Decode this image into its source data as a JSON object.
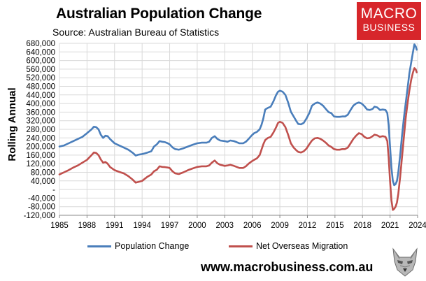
{
  "header": {
    "title": "Australian Population Change",
    "subtitle": "Source: Australian Bureau of Statistics"
  },
  "logo": {
    "line1": "MACRO",
    "line2": "BUSINESS",
    "background": "#d7262b"
  },
  "footer": {
    "website": "www.macrobusiness.com.au"
  },
  "chart_data": {
    "type": "line",
    "title": "Australian Population Change",
    "ylabel": "Rolling Annual",
    "xlabel": "",
    "ylim": [
      -120000,
      680000
    ],
    "xlim": [
      1985,
      2024
    ],
    "yticks": [
      -120000,
      -80000,
      -40000,
      0,
      40000,
      80000,
      120000,
      160000,
      200000,
      240000,
      280000,
      320000,
      360000,
      400000,
      440000,
      480000,
      520000,
      560000,
      600000,
      640000,
      680000
    ],
    "ytick_labels": [
      "-120,000",
      "-80,000",
      "-40,000",
      "-",
      "40,000",
      "80,000",
      "120,000",
      "160,000",
      "200,000",
      "240,000",
      "280,000",
      "320,000",
      "360,000",
      "400,000",
      "440,000",
      "480,000",
      "520,000",
      "560,000",
      "600,000",
      "640,000",
      "680,000"
    ],
    "xticks": [
      1985,
      1988,
      1991,
      1994,
      1997,
      2000,
      2003,
      2006,
      2009,
      2012,
      2015,
      2018,
      2021,
      2024
    ],
    "xtick_labels": [
      "1985",
      "1988",
      "1991",
      "1994",
      "1997",
      "2000",
      "2003",
      "2006",
      "2009",
      "2012",
      "2015",
      "2018",
      "2021",
      "2024"
    ],
    "grid": true,
    "legend_position": "bottom",
    "series": [
      {
        "name": "Population Change",
        "color": "#4a7ebb",
        "points": [
          [
            1985.0,
            200000
          ],
          [
            1985.5,
            205000
          ],
          [
            1986.0,
            215000
          ],
          [
            1986.5,
            225000
          ],
          [
            1987.0,
            235000
          ],
          [
            1987.5,
            245000
          ],
          [
            1988.0,
            262000
          ],
          [
            1988.5,
            280000
          ],
          [
            1988.75,
            292000
          ],
          [
            1989.0,
            290000
          ],
          [
            1989.25,
            280000
          ],
          [
            1989.5,
            255000
          ],
          [
            1989.75,
            240000
          ],
          [
            1990.0,
            250000
          ],
          [
            1990.25,
            248000
          ],
          [
            1990.5,
            235000
          ],
          [
            1991.0,
            215000
          ],
          [
            1991.5,
            205000
          ],
          [
            1992.0,
            195000
          ],
          [
            1992.5,
            185000
          ],
          [
            1993.0,
            170000
          ],
          [
            1993.3,
            158000
          ],
          [
            1993.6,
            162000
          ],
          [
            1994.0,
            165000
          ],
          [
            1994.3,
            168000
          ],
          [
            1994.6,
            172000
          ],
          [
            1995.0,
            178000
          ],
          [
            1995.3,
            200000
          ],
          [
            1995.6,
            210000
          ],
          [
            1995.9,
            225000
          ],
          [
            1996.2,
            222000
          ],
          [
            1996.5,
            220000
          ],
          [
            1996.8,
            215000
          ],
          [
            1997.0,
            210000
          ],
          [
            1997.3,
            196000
          ],
          [
            1997.6,
            188000
          ],
          [
            1998.0,
            185000
          ],
          [
            1998.5,
            192000
          ],
          [
            1999.0,
            200000
          ],
          [
            1999.5,
            208000
          ],
          [
            2000.0,
            215000
          ],
          [
            2000.5,
            218000
          ],
          [
            2001.0,
            218000
          ],
          [
            2001.3,
            222000
          ],
          [
            2001.6,
            240000
          ],
          [
            2001.9,
            248000
          ],
          [
            2002.2,
            235000
          ],
          [
            2002.5,
            228000
          ],
          [
            2003.0,
            225000
          ],
          [
            2003.3,
            222000
          ],
          [
            2003.6,
            228000
          ],
          [
            2004.0,
            225000
          ],
          [
            2004.3,
            220000
          ],
          [
            2004.6,
            215000
          ],
          [
            2005.0,
            215000
          ],
          [
            2005.3,
            222000
          ],
          [
            2005.6,
            235000
          ],
          [
            2005.9,
            250000
          ],
          [
            2006.2,
            262000
          ],
          [
            2006.5,
            268000
          ],
          [
            2006.8,
            280000
          ],
          [
            2007.0,
            300000
          ],
          [
            2007.2,
            330000
          ],
          [
            2007.4,
            372000
          ],
          [
            2007.7,
            380000
          ],
          [
            2008.0,
            385000
          ],
          [
            2008.3,
            410000
          ],
          [
            2008.6,
            440000
          ],
          [
            2008.8,
            455000
          ],
          [
            2009.0,
            460000
          ],
          [
            2009.3,
            455000
          ],
          [
            2009.6,
            440000
          ],
          [
            2009.9,
            405000
          ],
          [
            2010.2,
            362000
          ],
          [
            2010.5,
            340000
          ],
          [
            2010.8,
            318000
          ],
          [
            2011.0,
            305000
          ],
          [
            2011.3,
            303000
          ],
          [
            2011.6,
            310000
          ],
          [
            2011.9,
            330000
          ],
          [
            2012.2,
            355000
          ],
          [
            2012.5,
            390000
          ],
          [
            2012.8,
            400000
          ],
          [
            2013.1,
            405000
          ],
          [
            2013.4,
            400000
          ],
          [
            2013.7,
            390000
          ],
          [
            2014.0,
            375000
          ],
          [
            2014.3,
            360000
          ],
          [
            2014.6,
            355000
          ],
          [
            2014.9,
            340000
          ],
          [
            2015.2,
            338000
          ],
          [
            2015.5,
            338000
          ],
          [
            2015.8,
            340000
          ],
          [
            2016.1,
            340000
          ],
          [
            2016.4,
            348000
          ],
          [
            2016.7,
            370000
          ],
          [
            2017.0,
            390000
          ],
          [
            2017.3,
            400000
          ],
          [
            2017.6,
            405000
          ],
          [
            2017.9,
            400000
          ],
          [
            2018.2,
            388000
          ],
          [
            2018.5,
            372000
          ],
          [
            2018.8,
            370000
          ],
          [
            2019.1,
            375000
          ],
          [
            2019.3,
            385000
          ],
          [
            2019.6,
            382000
          ],
          [
            2019.9,
            370000
          ],
          [
            2020.2,
            372000
          ],
          [
            2020.5,
            370000
          ],
          [
            2020.7,
            355000
          ],
          [
            2020.85,
            300000
          ],
          [
            2021.0,
            200000
          ],
          [
            2021.15,
            100000
          ],
          [
            2021.3,
            40000
          ],
          [
            2021.45,
            20000
          ],
          [
            2021.6,
            25000
          ],
          [
            2021.75,
            40000
          ],
          [
            2021.9,
            80000
          ],
          [
            2022.1,
            160000
          ],
          [
            2022.3,
            250000
          ],
          [
            2022.5,
            330000
          ],
          [
            2022.7,
            400000
          ],
          [
            2022.9,
            470000
          ],
          [
            2023.1,
            540000
          ],
          [
            2023.3,
            590000
          ],
          [
            2023.5,
            640000
          ],
          [
            2023.65,
            675000
          ],
          [
            2023.8,
            665000
          ],
          [
            2023.9,
            650000
          ]
        ]
      },
      {
        "name": "Net Overseas Migration",
        "color": "#c0504d",
        "points": [
          [
            1985.0,
            70000
          ],
          [
            1985.5,
            80000
          ],
          [
            1986.0,
            90000
          ],
          [
            1986.5,
            102000
          ],
          [
            1987.0,
            112000
          ],
          [
            1987.5,
            125000
          ],
          [
            1988.0,
            138000
          ],
          [
            1988.5,
            160000
          ],
          [
            1988.75,
            172000
          ],
          [
            1989.0,
            170000
          ],
          [
            1989.25,
            160000
          ],
          [
            1989.5,
            140000
          ],
          [
            1989.75,
            125000
          ],
          [
            1990.0,
            128000
          ],
          [
            1990.25,
            120000
          ],
          [
            1990.5,
            105000
          ],
          [
            1991.0,
            90000
          ],
          [
            1991.5,
            82000
          ],
          [
            1992.0,
            75000
          ],
          [
            1992.5,
            62000
          ],
          [
            1993.0,
            45000
          ],
          [
            1993.3,
            32000
          ],
          [
            1993.6,
            35000
          ],
          [
            1994.0,
            40000
          ],
          [
            1994.3,
            50000
          ],
          [
            1994.6,
            60000
          ],
          [
            1995.0,
            70000
          ],
          [
            1995.3,
            85000
          ],
          [
            1995.6,
            92000
          ],
          [
            1995.9,
            108000
          ],
          [
            1996.2,
            105000
          ],
          [
            1996.5,
            104000
          ],
          [
            1996.8,
            102000
          ],
          [
            1997.0,
            100000
          ],
          [
            1997.3,
            85000
          ],
          [
            1997.6,
            75000
          ],
          [
            1998.0,
            72000
          ],
          [
            1998.5,
            80000
          ],
          [
            1999.0,
            90000
          ],
          [
            1999.5,
            98000
          ],
          [
            2000.0,
            105000
          ],
          [
            2000.5,
            108000
          ],
          [
            2001.0,
            108000
          ],
          [
            2001.3,
            112000
          ],
          [
            2001.6,
            125000
          ],
          [
            2001.9,
            135000
          ],
          [
            2002.2,
            122000
          ],
          [
            2002.5,
            115000
          ],
          [
            2003.0,
            110000
          ],
          [
            2003.3,
            112000
          ],
          [
            2003.6,
            115000
          ],
          [
            2004.0,
            110000
          ],
          [
            2004.3,
            105000
          ],
          [
            2004.6,
            100000
          ],
          [
            2005.0,
            100000
          ],
          [
            2005.3,
            108000
          ],
          [
            2005.6,
            120000
          ],
          [
            2005.9,
            130000
          ],
          [
            2006.2,
            138000
          ],
          [
            2006.5,
            145000
          ],
          [
            2006.8,
            160000
          ],
          [
            2007.0,
            185000
          ],
          [
            2007.2,
            210000
          ],
          [
            2007.4,
            230000
          ],
          [
            2007.7,
            240000
          ],
          [
            2008.0,
            245000
          ],
          [
            2008.3,
            265000
          ],
          [
            2008.6,
            290000
          ],
          [
            2008.8,
            310000
          ],
          [
            2009.0,
            315000
          ],
          [
            2009.3,
            310000
          ],
          [
            2009.6,
            290000
          ],
          [
            2009.9,
            255000
          ],
          [
            2010.2,
            215000
          ],
          [
            2010.5,
            195000
          ],
          [
            2010.8,
            182000
          ],
          [
            2011.0,
            175000
          ],
          [
            2011.3,
            172000
          ],
          [
            2011.6,
            178000
          ],
          [
            2011.9,
            190000
          ],
          [
            2012.2,
            210000
          ],
          [
            2012.5,
            228000
          ],
          [
            2012.8,
            238000
          ],
          [
            2013.1,
            240000
          ],
          [
            2013.4,
            236000
          ],
          [
            2013.7,
            228000
          ],
          [
            2014.0,
            218000
          ],
          [
            2014.3,
            205000
          ],
          [
            2014.6,
            198000
          ],
          [
            2014.9,
            188000
          ],
          [
            2015.2,
            185000
          ],
          [
            2015.5,
            185000
          ],
          [
            2015.8,
            188000
          ],
          [
            2016.1,
            188000
          ],
          [
            2016.4,
            195000
          ],
          [
            2016.7,
            215000
          ],
          [
            2017.0,
            235000
          ],
          [
            2017.3,
            250000
          ],
          [
            2017.6,
            262000
          ],
          [
            2017.9,
            258000
          ],
          [
            2018.2,
            245000
          ],
          [
            2018.5,
            238000
          ],
          [
            2018.8,
            240000
          ],
          [
            2019.1,
            248000
          ],
          [
            2019.3,
            255000
          ],
          [
            2019.6,
            252000
          ],
          [
            2019.9,
            245000
          ],
          [
            2020.2,
            248000
          ],
          [
            2020.5,
            245000
          ],
          [
            2020.7,
            225000
          ],
          [
            2020.85,
            150000
          ],
          [
            2021.0,
            40000
          ],
          [
            2021.15,
            -50000
          ],
          [
            2021.3,
            -95000
          ],
          [
            2021.45,
            -90000
          ],
          [
            2021.6,
            -80000
          ],
          [
            2021.75,
            -60000
          ],
          [
            2021.9,
            -20000
          ],
          [
            2022.1,
            60000
          ],
          [
            2022.3,
            150000
          ],
          [
            2022.5,
            240000
          ],
          [
            2022.7,
            330000
          ],
          [
            2022.9,
            400000
          ],
          [
            2023.1,
            460000
          ],
          [
            2023.3,
            510000
          ],
          [
            2023.5,
            545000
          ],
          [
            2023.65,
            565000
          ],
          [
            2023.8,
            558000
          ],
          [
            2023.9,
            545000
          ]
        ]
      }
    ]
  }
}
